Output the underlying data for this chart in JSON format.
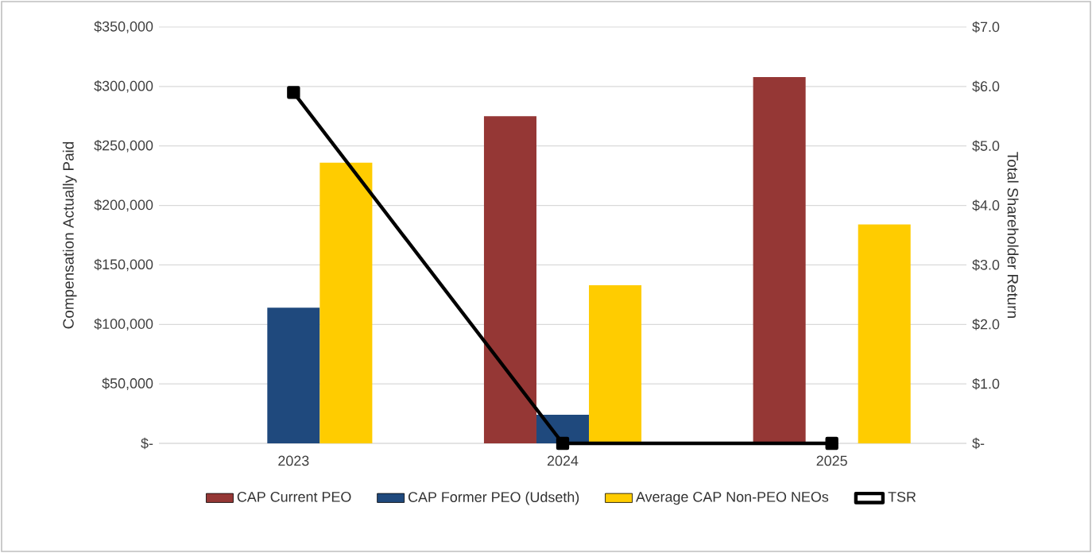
{
  "chart_data": {
    "type": "bar",
    "categories": [
      "2023",
      "2024",
      "2025"
    ],
    "ylabel": "Compensation Actually Paid",
    "y2label": "Total Shareholder Return",
    "series": [
      {
        "name": "CAP Current PEO",
        "color": "#953735",
        "values": [
          null,
          275000,
          308000
        ]
      },
      {
        "name": "CAP Former PEO (Udseth)",
        "color": "#1f497d",
        "values": [
          114000,
          24000,
          null
        ]
      },
      {
        "name": "Average CAP Non-PEO NEOs",
        "color": "#ffcc00",
        "values": [
          236000,
          133000,
          184000
        ]
      },
      {
        "name": "TSR",
        "type": "line",
        "axis": "y2",
        "color": "#000000",
        "marker": "square",
        "values": [
          5.9,
          0,
          0
        ]
      }
    ],
    "ylim": [
      0,
      350000
    ],
    "yticks": [
      {
        "value": 0,
        "label": "$-"
      },
      {
        "value": 50000,
        "label": "$50,000"
      },
      {
        "value": 100000,
        "label": "$100,000"
      },
      {
        "value": 150000,
        "label": "$150,000"
      },
      {
        "value": 200000,
        "label": "$200,000"
      },
      {
        "value": 250000,
        "label": "$250,000"
      },
      {
        "value": 300000,
        "label": "$300,000"
      },
      {
        "value": 350000,
        "label": "$350,000"
      }
    ],
    "y2lim": [
      0,
      7
    ],
    "y2ticks": [
      {
        "value": 0,
        "label": "$-"
      },
      {
        "value": 1,
        "label": "$1.0"
      },
      {
        "value": 2,
        "label": "$2.0"
      },
      {
        "value": 3,
        "label": "$3.0"
      },
      {
        "value": 4,
        "label": "$4.0"
      },
      {
        "value": 5,
        "label": "$5.0"
      },
      {
        "value": 6,
        "label": "$6.0"
      },
      {
        "value": 7,
        "label": "$7.0"
      }
    ],
    "grid": "y",
    "legend": "bottom"
  }
}
